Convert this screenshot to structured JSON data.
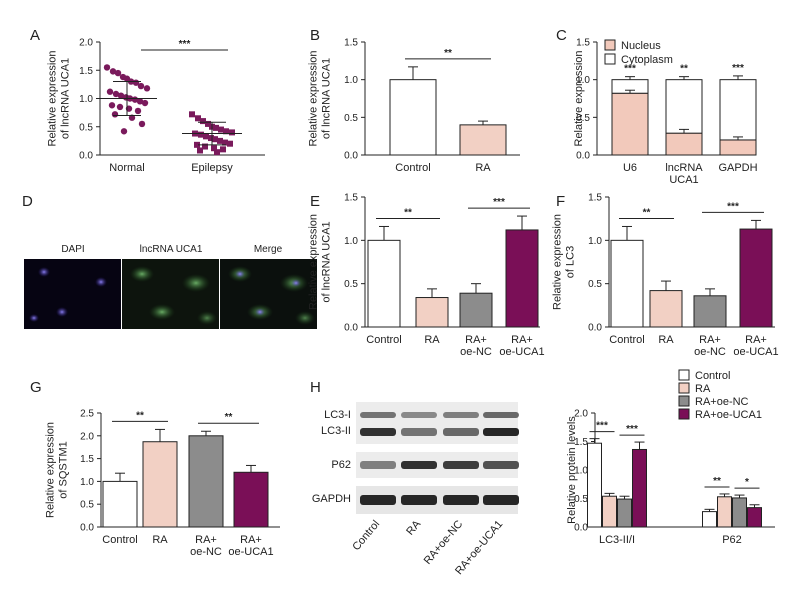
{
  "colors": {
    "control": "#ffffff",
    "ra": "#f2d0c4",
    "oe_nc": "#8c8c8c",
    "oe_uca1": "#7a0f57",
    "scatter": "#7a1a5c",
    "nucleus": "#f2c9bb",
    "cytoplasm": "#ffffff"
  },
  "panels": {
    "A": {
      "letter": "A"
    },
    "B": {
      "letter": "B"
    },
    "C": {
      "letter": "C"
    },
    "D": {
      "letter": "D",
      "images": [
        "DAPI",
        "lncRNA UCA1",
        "Merge"
      ]
    },
    "E": {
      "letter": "E"
    },
    "F": {
      "letter": "F"
    },
    "G": {
      "letter": "G"
    },
    "H": {
      "letter": "H",
      "blot_rows": [
        "LC3-I",
        "LC3-II",
        "P62",
        "GAPDH"
      ],
      "blot_lanes": [
        "Control",
        "RA",
        "RA+oe-NC",
        "RA+oe-UCA1"
      ]
    }
  },
  "chart_data": [
    {
      "id": "A",
      "type": "scatter",
      "ylabel": [
        "Relative expression",
        "of lncRNA UCA1"
      ],
      "ylim": [
        0,
        2.0
      ],
      "yticks": [
        "0.0",
        "0.5",
        "1.0",
        "1.5",
        "2.0"
      ],
      "categories": [
        "Normal",
        "Epilepsy"
      ],
      "points": [
        [
          1.55,
          1.48,
          1.45,
          1.38,
          1.35,
          1.3,
          1.28,
          1.22,
          1.18,
          1.12,
          1.08,
          1.05,
          1.02,
          1.0,
          0.98,
          0.95,
          0.92,
          0.88,
          0.85,
          0.82,
          0.78,
          0.72,
          0.66,
          0.55,
          0.42
        ],
        [
          0.72,
          0.65,
          0.6,
          0.55,
          0.5,
          0.48,
          0.45,
          0.42,
          0.4,
          0.38,
          0.36,
          0.33,
          0.3,
          0.28,
          0.25,
          0.22,
          0.2,
          0.18,
          0.15,
          0.12,
          0.1,
          0.08,
          0.05
        ]
      ],
      "means": [
        1.0,
        0.38
      ],
      "sd": [
        0.3,
        0.2
      ],
      "significance": [
        {
          "from": 0,
          "to": 1,
          "label": "***"
        }
      ]
    },
    {
      "id": "B",
      "type": "bar",
      "ylabel": [
        "Relative expression",
        "of lncRNA UCA1"
      ],
      "ylim": [
        0,
        1.5
      ],
      "yticks": [
        "0.0",
        "0.5",
        "1.0",
        "1.5"
      ],
      "categories": [
        "Control",
        "RA"
      ],
      "values": [
        1.0,
        0.4
      ],
      "errors": [
        0.17,
        0.05
      ],
      "significance": [
        {
          "from": 0,
          "to": 1,
          "label": "**"
        }
      ]
    },
    {
      "id": "C",
      "type": "stacked-bar",
      "ylabel": [
        "Relative expression"
      ],
      "ylim": [
        0,
        1.5
      ],
      "yticks": [
        "0.0",
        "0.5",
        "1.0",
        "1.5"
      ],
      "categories": [
        [
          "U6"
        ],
        [
          "lncRNA",
          "UCA1"
        ],
        [
          "GAPDH"
        ]
      ],
      "series": [
        {
          "name": "Nucleus",
          "values": [
            0.82,
            0.29,
            0.2
          ]
        },
        {
          "name": "Cytoplasm",
          "values": [
            0.18,
            0.71,
            0.8
          ]
        }
      ],
      "errors": [
        [
          0.04,
          0.05,
          0.04
        ],
        [
          0.04,
          0.04,
          0.05
        ]
      ],
      "significance": [
        "***",
        "**",
        "***"
      ]
    },
    {
      "id": "E",
      "type": "bar",
      "ylabel": [
        "Relative expression",
        "of lncRNA UCA1"
      ],
      "ylim": [
        0,
        1.5
      ],
      "yticks": [
        "0.0",
        "0.5",
        "1.0",
        "1.5"
      ],
      "categories": [
        [
          "Control"
        ],
        [
          "RA"
        ],
        [
          "RA+",
          "oe-NC"
        ],
        [
          "RA+",
          "oe-UCA1"
        ]
      ],
      "values": [
        1.0,
        0.34,
        0.39,
        1.12
      ],
      "errors": [
        0.16,
        0.1,
        0.11,
        0.16
      ],
      "significance": [
        {
          "from": 0,
          "to": 1,
          "label": "**"
        },
        {
          "from": 2,
          "to": 3,
          "label": "***"
        }
      ]
    },
    {
      "id": "F",
      "type": "bar",
      "ylabel": [
        "Relative expression",
        "of LC3"
      ],
      "ylim": [
        0,
        1.5
      ],
      "yticks": [
        "0.0",
        "0.5",
        "1.0",
        "1.5"
      ],
      "categories": [
        [
          "Control"
        ],
        [
          "RA"
        ],
        [
          "RA+",
          "oe-NC"
        ],
        [
          "RA+",
          "oe-UCA1"
        ]
      ],
      "values": [
        1.0,
        0.42,
        0.36,
        1.13
      ],
      "errors": [
        0.16,
        0.11,
        0.08,
        0.1
      ],
      "significance": [
        {
          "from": 0,
          "to": 1,
          "label": "**"
        },
        {
          "from": 2,
          "to": 3,
          "label": "***"
        }
      ]
    },
    {
      "id": "G",
      "type": "bar",
      "ylabel": [
        "Relative expression",
        "of SQSTM1"
      ],
      "ylim": [
        0,
        2.5
      ],
      "yticks": [
        "0.0",
        "0.5",
        "1.0",
        "1.5",
        "2.0",
        "2.5"
      ],
      "categories": [
        [
          "Control"
        ],
        [
          "RA"
        ],
        [
          "RA+",
          "oe-NC"
        ],
        [
          "RA+",
          "oe-UCA1"
        ]
      ],
      "values": [
        1.0,
        1.87,
        2.0,
        1.2
      ],
      "errors": [
        0.18,
        0.27,
        0.1,
        0.15
      ],
      "significance": [
        {
          "from": 0,
          "to": 1,
          "label": "**"
        },
        {
          "from": 2,
          "to": 3,
          "label": "**"
        }
      ]
    },
    {
      "id": "H",
      "type": "grouped-bar",
      "ylabel": [
        "Relative protein levels"
      ],
      "ylim": [
        0,
        2.0
      ],
      "yticks": [
        "0.0",
        "0.5",
        "1.0",
        "1.5",
        "2.0"
      ],
      "categories": [
        "LC3-II/I",
        "P62"
      ],
      "series": [
        {
          "name": "Control",
          "values": [
            1.47,
            0.27
          ],
          "errors": [
            0.08,
            0.04
          ]
        },
        {
          "name": "RA",
          "values": [
            0.54,
            0.53
          ],
          "errors": [
            0.05,
            0.05
          ]
        },
        {
          "name": "RA+oe-NC",
          "values": [
            0.49,
            0.51
          ],
          "errors": [
            0.05,
            0.05
          ]
        },
        {
          "name": "RA+oe-UCA1",
          "values": [
            1.36,
            0.34
          ],
          "errors": [
            0.13,
            0.05
          ]
        }
      ],
      "significance": [
        {
          "group": 0,
          "from": 0,
          "to": 1,
          "label": "***"
        },
        {
          "group": 0,
          "from": 2,
          "to": 3,
          "label": "***"
        },
        {
          "group": 1,
          "from": 0,
          "to": 1,
          "label": "**"
        },
        {
          "group": 1,
          "from": 2,
          "to": 3,
          "label": "*"
        }
      ]
    }
  ]
}
